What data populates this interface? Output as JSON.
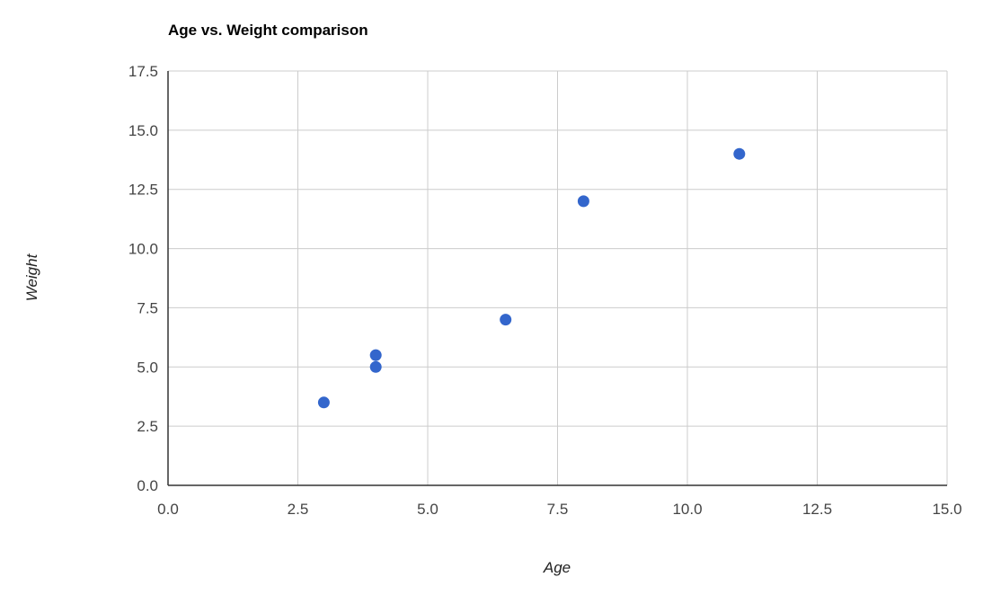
{
  "chart_data": {
    "type": "scatter",
    "title": "Age vs. Weight comparison",
    "xlabel": "Age",
    "ylabel": "Weight",
    "xlim": [
      0,
      15
    ],
    "ylim": [
      0,
      17.5
    ],
    "x_ticks": [
      "0.0",
      "2.5",
      "5.0",
      "7.5",
      "10.0",
      "12.5",
      "15.0"
    ],
    "y_ticks": [
      "0.0",
      "2.5",
      "5.0",
      "7.5",
      "10.0",
      "12.5",
      "15.0",
      "17.5"
    ],
    "grid": true,
    "legend": "none",
    "points": [
      {
        "x": 8,
        "y": 12
      },
      {
        "x": 4,
        "y": 5.5
      },
      {
        "x": 11,
        "y": 14
      },
      {
        "x": 4,
        "y": 5
      },
      {
        "x": 3,
        "y": 3.5
      },
      {
        "x": 6.5,
        "y": 7
      }
    ],
    "colors": {
      "point": "#3366cc",
      "grid": "#cccccc",
      "axis": "#333333"
    }
  }
}
